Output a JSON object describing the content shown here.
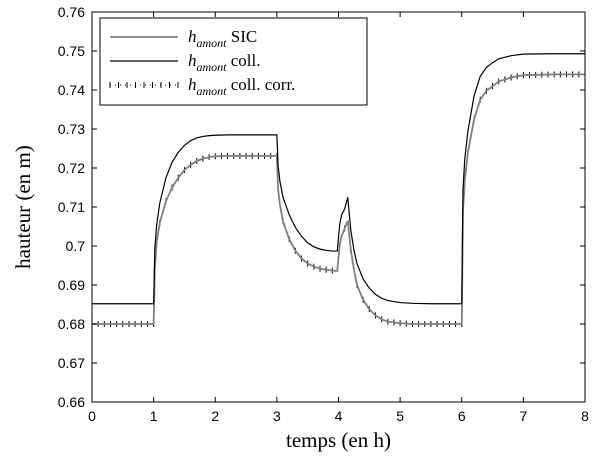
{
  "chart_data": {
    "type": "line",
    "xlabel": "temps (en h)",
    "ylabel": "hauteur (en m)",
    "xlim": [
      0,
      8
    ],
    "ylim": [
      0.66,
      0.76
    ],
    "xticks": [
      "0",
      "1",
      "2",
      "3",
      "4",
      "5",
      "6",
      "7",
      "8"
    ],
    "yticks": [
      "0.66",
      "0.67",
      "0.68",
      "0.69",
      "0.7",
      "0.71",
      "0.72",
      "0.73",
      "0.74",
      "0.75",
      "0.76"
    ],
    "grid": false,
    "legend_position": "top-left",
    "series": [
      {
        "name": "h_amont SIC",
        "legend_main": "h",
        "legend_sub": "amont",
        "legend_rest": " SIC",
        "color": "#7f7f7f",
        "style": "solid",
        "x": [
          0,
          1.0,
          1.02,
          1.05,
          1.1,
          1.2,
          1.3,
          1.4,
          1.5,
          1.6,
          1.7,
          1.8,
          1.9,
          2.0,
          2.2,
          2.5,
          2.8,
          3.0,
          3.02,
          3.05,
          3.1,
          3.2,
          3.3,
          3.4,
          3.5,
          3.6,
          3.7,
          3.8,
          3.9,
          3.98,
          4.02,
          4.05,
          4.1,
          4.15,
          4.2,
          4.25,
          4.3,
          4.4,
          4.5,
          4.6,
          4.7,
          4.8,
          5.0,
          5.2,
          5.5,
          6.0,
          6.02,
          6.05,
          6.1,
          6.2,
          6.3,
          6.4,
          6.5,
          6.6,
          6.8,
          7.0,
          7.5,
          8.0
        ],
        "y": [
          0.68,
          0.68,
          0.6945,
          0.701,
          0.706,
          0.7115,
          0.715,
          0.7175,
          0.7195,
          0.7208,
          0.7218,
          0.7224,
          0.7228,
          0.723,
          0.7231,
          0.7231,
          0.7231,
          0.7231,
          0.7145,
          0.7105,
          0.7063,
          0.7018,
          0.6988,
          0.6968,
          0.6955,
          0.6947,
          0.6942,
          0.6939,
          0.6937,
          0.6936,
          0.7005,
          0.7025,
          0.7045,
          0.7065,
          0.699,
          0.694,
          0.69,
          0.6862,
          0.6838,
          0.6822,
          0.6812,
          0.6806,
          0.6802,
          0.68,
          0.68,
          0.68,
          0.709,
          0.717,
          0.724,
          0.7325,
          0.7375,
          0.7398,
          0.741,
          0.7422,
          0.7432,
          0.7438,
          0.744,
          0.744
        ]
      },
      {
        "name": "h_amont coll.",
        "legend_main": "h",
        "legend_sub": "amont",
        "legend_rest": " coll.",
        "color": "#000000",
        "style": "solid",
        "x": [
          0,
          1.0,
          1.02,
          1.05,
          1.1,
          1.2,
          1.3,
          1.4,
          1.5,
          1.6,
          1.7,
          1.8,
          1.9,
          2.0,
          2.2,
          2.5,
          2.8,
          3.0,
          3.02,
          3.05,
          3.1,
          3.2,
          3.3,
          3.4,
          3.5,
          3.6,
          3.7,
          3.8,
          3.9,
          3.98,
          4.02,
          4.05,
          4.1,
          4.15,
          4.2,
          4.25,
          4.3,
          4.4,
          4.5,
          4.6,
          4.7,
          4.8,
          5.0,
          5.2,
          5.5,
          6.0,
          6.02,
          6.05,
          6.1,
          6.2,
          6.3,
          6.4,
          6.5,
          6.6,
          6.8,
          7.0,
          7.5,
          8.0
        ],
        "y": [
          0.6852,
          0.6852,
          0.6995,
          0.7055,
          0.711,
          0.7175,
          0.7215,
          0.724,
          0.7258,
          0.727,
          0.7277,
          0.7281,
          0.7283,
          0.7284,
          0.7285,
          0.7285,
          0.7285,
          0.7285,
          0.7205,
          0.7165,
          0.7125,
          0.708,
          0.7048,
          0.7025,
          0.7008,
          0.6998,
          0.6992,
          0.6989,
          0.6987,
          0.6987,
          0.7055,
          0.708,
          0.7095,
          0.7125,
          0.704,
          0.699,
          0.6955,
          0.6915,
          0.6892,
          0.6876,
          0.6866,
          0.686,
          0.6855,
          0.6853,
          0.6852,
          0.6852,
          0.7145,
          0.7225,
          0.7295,
          0.7385,
          0.7435,
          0.7458,
          0.747,
          0.748,
          0.7488,
          0.7492,
          0.7493,
          0.7493
        ]
      },
      {
        "name": "h_amont coll. corr.",
        "legend_main": "h",
        "legend_sub": "amont",
        "legend_rest": " coll. corr.",
        "color": "#000000",
        "style": "dotted-ticks",
        "x": [
          0,
          1.0,
          1.02,
          1.05,
          1.1,
          1.2,
          1.3,
          1.4,
          1.5,
          1.6,
          1.7,
          1.8,
          1.9,
          2.0,
          2.2,
          2.5,
          2.8,
          3.0,
          3.02,
          3.05,
          3.1,
          3.2,
          3.3,
          3.4,
          3.5,
          3.6,
          3.7,
          3.8,
          3.9,
          3.98,
          4.02,
          4.05,
          4.1,
          4.15,
          4.2,
          4.25,
          4.3,
          4.4,
          4.5,
          4.6,
          4.7,
          4.8,
          5.0,
          5.2,
          5.5,
          6.0,
          6.02,
          6.05,
          6.1,
          6.2,
          6.3,
          6.4,
          6.5,
          6.6,
          6.8,
          7.0,
          7.5,
          8.0
        ],
        "y": [
          0.68,
          0.68,
          0.6945,
          0.701,
          0.706,
          0.7115,
          0.715,
          0.7175,
          0.7195,
          0.7208,
          0.7218,
          0.7224,
          0.7228,
          0.723,
          0.7231,
          0.7231,
          0.7231,
          0.7231,
          0.7145,
          0.7105,
          0.7063,
          0.7018,
          0.6988,
          0.6968,
          0.6955,
          0.6947,
          0.6942,
          0.6939,
          0.6937,
          0.6936,
          0.7005,
          0.7025,
          0.7045,
          0.7065,
          0.699,
          0.694,
          0.69,
          0.6862,
          0.6838,
          0.6822,
          0.6812,
          0.6806,
          0.6802,
          0.68,
          0.68,
          0.68,
          0.709,
          0.717,
          0.724,
          0.7325,
          0.7375,
          0.7398,
          0.741,
          0.7422,
          0.7432,
          0.7438,
          0.744,
          0.744
        ]
      }
    ]
  }
}
